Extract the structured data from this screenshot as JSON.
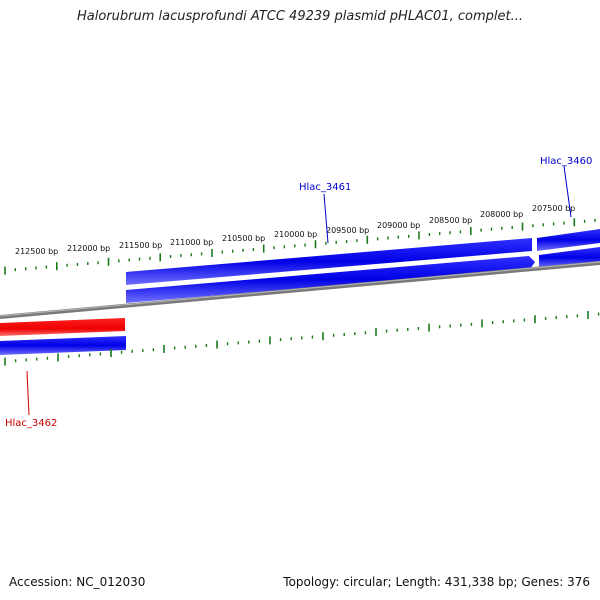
{
  "title": "Halorubrum lacusprofundi ATCC 49239 plasmid pHLAC01, complet...",
  "footer": {
    "accession": "Accession: NC_012030",
    "summary": "Topology: circular; Length: 431,338 bp; Genes: 376"
  },
  "scale_labels": [
    "212500 bp",
    "212000 bp",
    "211500 bp",
    "211000 bp",
    "210500 bp",
    "210000 bp",
    "209500 bp",
    "209000 bp",
    "208500 bp",
    "208000 bp",
    "207500 bp"
  ],
  "genes": [
    {
      "name": "Hlac_3461",
      "color": "#0000cc"
    },
    {
      "name": "Hlac_3460",
      "color": "#0000cc"
    },
    {
      "name": "Hlac_3462",
      "color": "#cc0000"
    }
  ],
  "colors": {
    "forward": "#0000ee",
    "reverse": "#ee0000",
    "backbone": "#808080",
    "ticks": "#1a7a1a"
  }
}
